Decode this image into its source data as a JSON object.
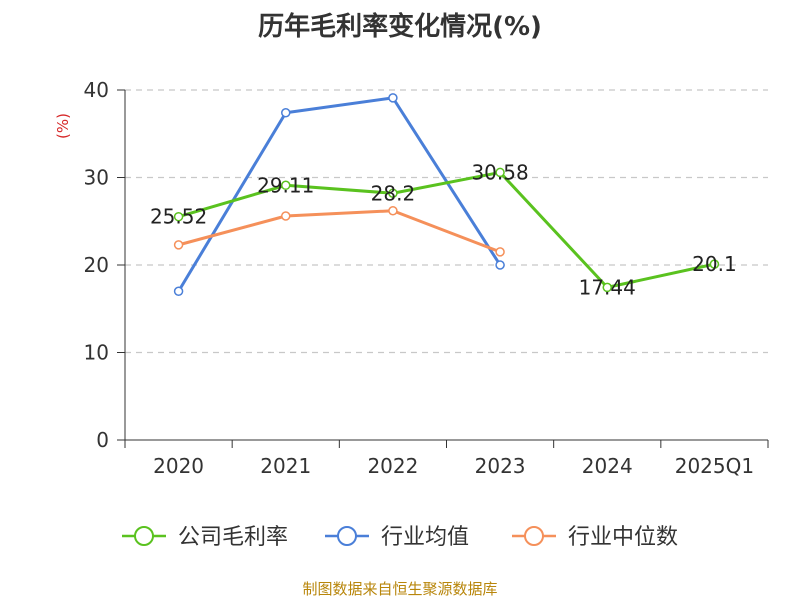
{
  "title": "历年毛利率变化情况(%)",
  "source": "制图数据来自恒生聚源数据库",
  "chart_data": {
    "type": "line",
    "title": "历年毛利率变化情况(%)",
    "ylabel": "(%)",
    "xlabel": "",
    "ylim": [
      0,
      40
    ],
    "yticks": [
      0,
      10,
      20,
      30,
      40
    ],
    "grid": true,
    "legend_position": "bottom",
    "categories": [
      "2020",
      "2021",
      "2022",
      "2023",
      "2024",
      "2025Q1"
    ],
    "series": [
      {
        "name": "公司毛利率",
        "color": "#5ac21f",
        "values": [
          25.52,
          29.11,
          28.2,
          30.58,
          17.44,
          20.1
        ],
        "labels": [
          "25.52",
          "29.11",
          "28.2",
          "30.58",
          "17.44",
          "20.1"
        ]
      },
      {
        "name": "行业均值",
        "color": "#4a7fd8",
        "values": [
          17.0,
          37.4,
          39.1,
          20.0,
          null,
          null
        ]
      },
      {
        "name": "行业中位数",
        "color": "#f5905a",
        "values": [
          22.3,
          25.6,
          26.2,
          21.5,
          null,
          null
        ]
      }
    ]
  }
}
